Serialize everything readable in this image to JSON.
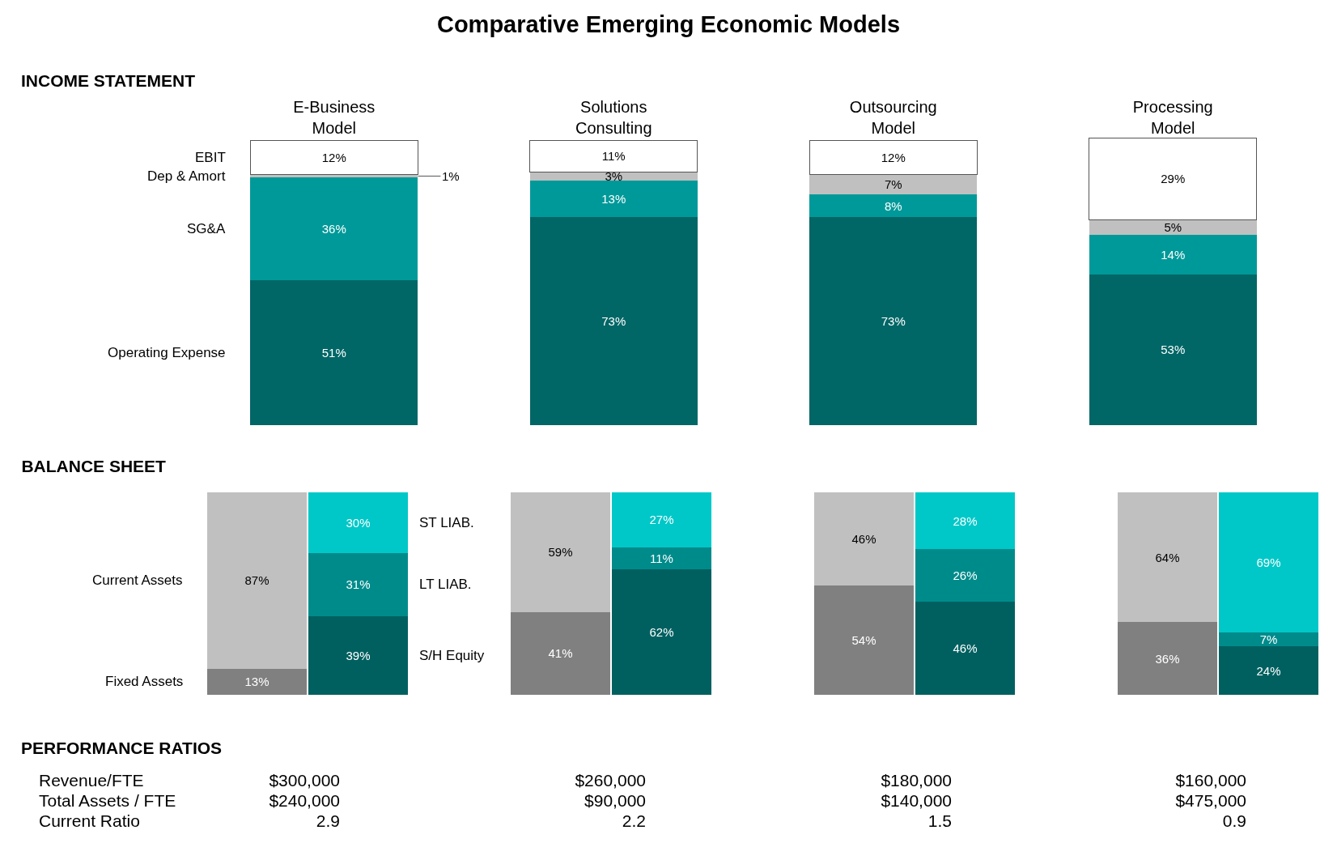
{
  "chart_data": [
    {
      "type": "bar",
      "title": "Comparative Emerging Economic Models",
      "subtitle": "INCOME STATEMENT",
      "stacked": true,
      "legend": false,
      "tick_labels": "x",
      "categories": [
        "E-Business Model",
        "Solutions Consulting",
        "Outsourcing Model",
        "Processing Model"
      ],
      "series": [
        {
          "name": "Operating Expense",
          "color": "#006666",
          "values": [
            51,
            73,
            73,
            53
          ],
          "value_labels": [
            "51%",
            "73%",
            "73%",
            "53%"
          ]
        },
        {
          "name": "SG&A",
          "color": "#009999",
          "values": [
            36,
            13,
            8,
            14
          ],
          "value_labels": [
            "36%",
            "13%",
            "8%",
            "14%"
          ]
        },
        {
          "name": "Dep & Amort",
          "color": "#c0c0c0",
          "values": [
            1,
            3,
            7,
            5
          ],
          "value_labels": [
            "1%",
            "3%",
            "7%",
            "5%"
          ]
        },
        {
          "name": "EBIT",
          "color": "#ffffff",
          "values": [
            12,
            11,
            12,
            29
          ],
          "value_labels": [
            "12%",
            "11%",
            "12%",
            "29%"
          ]
        }
      ]
    },
    {
      "type": "bar",
      "title": "BALANCE SHEET",
      "stacked": true,
      "legend": false,
      "tick_labels": false,
      "categories": [
        null,
        null,
        null,
        null,
        null,
        null,
        null,
        null
      ],
      "series": [
        {
          "name": "Fixed Assets",
          "color": "#808080",
          "values": [
            13,
            null,
            41,
            null,
            54,
            null,
            36,
            null
          ],
          "value_labels": [
            "13%",
            null,
            "41%",
            null,
            "54%",
            null,
            "36%",
            null
          ]
        },
        {
          "name": "Current Assets",
          "color": "#c0c0c0",
          "values": [
            87,
            null,
            59,
            null,
            46,
            null,
            64,
            null
          ],
          "value_labels": [
            "87%",
            null,
            "59%",
            null,
            "46%",
            null,
            "64%",
            null
          ]
        },
        {
          "name": "S/H Equity",
          "color": "#006060",
          "values": [
            null,
            39,
            null,
            62,
            null,
            46,
            null,
            24
          ],
          "value_labels": [
            null,
            "39%",
            null,
            "62%",
            null,
            "46%",
            null,
            "24%"
          ]
        },
        {
          "name": "LT LIAB.",
          "color": "#008b8b",
          "values": [
            null,
            31,
            null,
            11,
            null,
            26,
            null,
            7
          ],
          "value_labels": [
            null,
            "31%",
            null,
            "11%",
            null,
            "26%",
            null,
            "7%"
          ]
        },
        {
          "name": "ST LIAB.",
          "color": "#00c8c8",
          "values": [
            null,
            30,
            null,
            27,
            null,
            28,
            null,
            69
          ],
          "value_labels": [
            null,
            "30%",
            null,
            "27%",
            null,
            "28%",
            null,
            "69%"
          ]
        }
      ]
    },
    {
      "type": "other",
      "title": "PERFORMANCE RATIOS",
      "annotations": [
        "Revenue/FTE",
        "Total Assets / FTE",
        "Current Ratio",
        "$300,000",
        "$240,000",
        "2.9",
        "$260,000",
        "$90,000",
        "2.2",
        "$180,000",
        "$140,000",
        "1.5",
        "$160,000",
        "$475,000",
        "0.9"
      ]
    }
  ]
}
